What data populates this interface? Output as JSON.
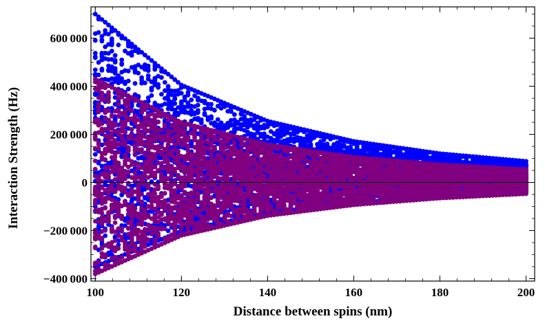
{
  "chart_data": {
    "type": "scatter",
    "title": "",
    "xlabel": "Distance between spins (nm)",
    "ylabel": "Interaction Strength (Hz)",
    "xlim": [
      99,
      202
    ],
    "ylim": [
      -410000,
      730000
    ],
    "x_ticks": [
      100,
      120,
      140,
      160,
      180,
      200
    ],
    "x_tick_labels": [
      "100",
      "120",
      "140",
      "160",
      "180",
      "200"
    ],
    "y_ticks": [
      -400000,
      -200000,
      0,
      200000,
      400000,
      600000
    ],
    "y_tick_labels": [
      "−400 000",
      "−200 000",
      "0",
      "200 000",
      "400 000",
      "600 000"
    ],
    "x_range": [
      100,
      200
    ],
    "series": [
      {
        "color": "#0000ff",
        "upper_envelope": [
          [
            100,
            700000
          ],
          [
            120,
            405000
          ],
          [
            140,
            255000
          ],
          [
            160,
            171000
          ],
          [
            180,
            120000
          ],
          [
            200,
            88000
          ]
        ],
        "lower_envelope": [
          [
            100,
            -350000
          ],
          [
            120,
            -202000
          ],
          [
            140,
            -127000
          ],
          [
            160,
            -85000
          ],
          [
            180,
            -60000
          ],
          [
            200,
            -44000
          ]
        ]
      },
      {
        "color": "#800080",
        "upper_envelope": [
          [
            100,
            430000
          ],
          [
            120,
            249000
          ],
          [
            140,
            157000
          ],
          [
            160,
            105000
          ],
          [
            180,
            74000
          ],
          [
            200,
            54000
          ]
        ],
        "lower_envelope": [
          [
            100,
            -380000
          ],
          [
            120,
            -220000
          ],
          [
            140,
            -138000
          ],
          [
            160,
            -93000
          ],
          [
            180,
            -65000
          ],
          [
            200,
            -47000
          ]
        ]
      }
    ],
    "zero_line": true,
    "grid": false,
    "legend": "none"
  }
}
